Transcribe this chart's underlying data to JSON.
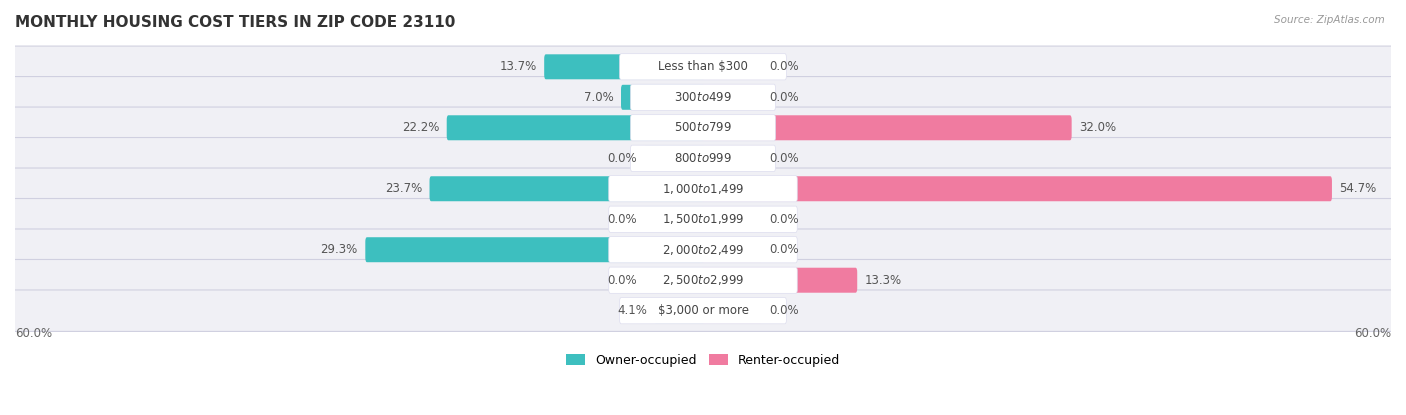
{
  "title": "MONTHLY HOUSING COST TIERS IN ZIP CODE 23110",
  "source": "Source: ZipAtlas.com",
  "categories": [
    "Less than $300",
    "$300 to $499",
    "$500 to $799",
    "$800 to $999",
    "$1,000 to $1,499",
    "$1,500 to $1,999",
    "$2,000 to $2,499",
    "$2,500 to $2,999",
    "$3,000 or more"
  ],
  "owner_values": [
    13.7,
    7.0,
    22.2,
    0.0,
    23.7,
    0.0,
    29.3,
    0.0,
    4.1
  ],
  "renter_values": [
    0.0,
    0.0,
    32.0,
    0.0,
    54.7,
    0.0,
    0.0,
    13.3,
    0.0
  ],
  "owner_color": "#3dbfbf",
  "renter_color": "#f07ba0",
  "owner_color_zero": "#9fd8db",
  "renter_color_zero": "#f5b8cc",
  "max_value": 60.0,
  "zero_stub": 5.0,
  "label_fontsize": 8.5,
  "title_fontsize": 11,
  "axis_label_fontsize": 8.5,
  "legend_fontsize": 9,
  "bar_height": 0.52,
  "row_bg_color": "#f0f0f5",
  "row_edge_color": "#d0d0e0",
  "value_label_color": "#555555",
  "cat_label_fontsize": 8.5,
  "white_pill_color": "#ffffff"
}
